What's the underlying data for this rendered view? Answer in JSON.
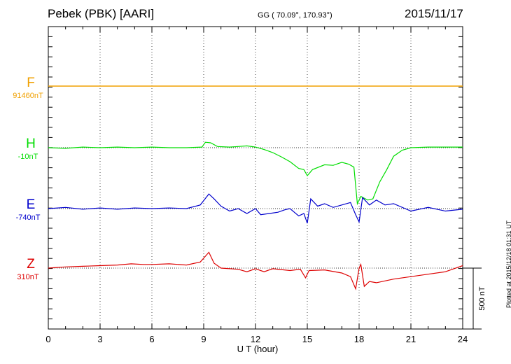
{
  "header": {
    "station": "Pebek (PBK)  [AARI]",
    "coords": "GG ( 70.09°, 170.93°)",
    "date": "2015/11/17"
  },
  "footer_note": "Plotted at 2015/12/18 01:31  UT",
  "chart_data": {
    "type": "line",
    "xlabel": "U T (hour)",
    "xlim": [
      0,
      24
    ],
    "xticks": [
      "0",
      "3",
      "6",
      "9",
      "12",
      "15",
      "18",
      "21",
      "24"
    ],
    "grid": true,
    "scale_bar": {
      "label": "500 nT",
      "value_nT": 500
    },
    "series": [
      {
        "name": "F",
        "baseline": "91460nT",
        "color": "#f0a000",
        "points": [
          [
            0,
            0
          ],
          [
            6,
            0
          ],
          [
            12,
            0
          ],
          [
            18,
            0
          ],
          [
            24,
            0
          ]
        ]
      },
      {
        "name": "H",
        "baseline": "-10nT",
        "color": "#00dd00",
        "points": [
          [
            0,
            0
          ],
          [
            1,
            -5
          ],
          [
            2,
            5
          ],
          [
            3,
            0
          ],
          [
            4,
            5
          ],
          [
            5,
            0
          ],
          [
            6,
            5
          ],
          [
            7,
            0
          ],
          [
            8,
            0
          ],
          [
            8.9,
            5
          ],
          [
            9.1,
            45
          ],
          [
            9.4,
            40
          ],
          [
            9.8,
            10
          ],
          [
            10.5,
            5
          ],
          [
            11,
            10
          ],
          [
            11.5,
            15
          ],
          [
            12,
            5
          ],
          [
            12.5,
            -15
          ],
          [
            13,
            -40
          ],
          [
            13.5,
            -75
          ],
          [
            14,
            -115
          ],
          [
            14.5,
            -170
          ],
          [
            14.8,
            -180
          ],
          [
            15,
            -230
          ],
          [
            15.3,
            -180
          ],
          [
            16,
            -140
          ],
          [
            16.5,
            -145
          ],
          [
            17,
            -120
          ],
          [
            17.4,
            -135
          ],
          [
            17.7,
            -160
          ],
          [
            17.9,
            -460
          ],
          [
            18.1,
            -400
          ],
          [
            18.5,
            -430
          ],
          [
            18.8,
            -420
          ],
          [
            19.2,
            -280
          ],
          [
            19.6,
            -180
          ],
          [
            20,
            -70
          ],
          [
            20.5,
            -20
          ],
          [
            21,
            0
          ],
          [
            22,
            5
          ],
          [
            23,
            5
          ],
          [
            24,
            5
          ]
        ]
      },
      {
        "name": "E",
        "baseline": "-740nT",
        "color": "#0000cc",
        "points": [
          [
            0,
            0
          ],
          [
            1,
            10
          ],
          [
            2,
            -5
          ],
          [
            3,
            5
          ],
          [
            4,
            -5
          ],
          [
            5,
            5
          ],
          [
            6,
            0
          ],
          [
            7,
            5
          ],
          [
            8,
            0
          ],
          [
            8.8,
            30
          ],
          [
            9.3,
            120
          ],
          [
            9.6,
            80
          ],
          [
            10,
            20
          ],
          [
            10.5,
            -20
          ],
          [
            11,
            0
          ],
          [
            11.5,
            -40
          ],
          [
            12,
            0
          ],
          [
            12.3,
            -50
          ],
          [
            12.8,
            -40
          ],
          [
            13.3,
            -30
          ],
          [
            13.7,
            -10
          ],
          [
            14,
            0
          ],
          [
            14.5,
            -60
          ],
          [
            14.8,
            -40
          ],
          [
            15,
            -120
          ],
          [
            15.2,
            80
          ],
          [
            15.6,
            20
          ],
          [
            16,
            40
          ],
          [
            16.5,
            10
          ],
          [
            17,
            30
          ],
          [
            17.5,
            50
          ],
          [
            17.8,
            -50
          ],
          [
            18,
            -110
          ],
          [
            18.2,
            90
          ],
          [
            18.6,
            30
          ],
          [
            19,
            70
          ],
          [
            19.5,
            30
          ],
          [
            20,
            40
          ],
          [
            21,
            -20
          ],
          [
            22,
            10
          ],
          [
            23,
            -20
          ],
          [
            24,
            -5
          ]
        ]
      },
      {
        "name": "Z",
        "baseline": "310nT",
        "color": "#dd0000",
        "points": [
          [
            0,
            0
          ],
          [
            1,
            10
          ],
          [
            2,
            15
          ],
          [
            3,
            20
          ],
          [
            4,
            25
          ],
          [
            4.8,
            35
          ],
          [
            5.5,
            30
          ],
          [
            6,
            30
          ],
          [
            7,
            35
          ],
          [
            8,
            25
          ],
          [
            8.8,
            50
          ],
          [
            9.3,
            130
          ],
          [
            9.6,
            40
          ],
          [
            10,
            0
          ],
          [
            11,
            -10
          ],
          [
            11.5,
            -30
          ],
          [
            12,
            -5
          ],
          [
            12.5,
            -30
          ],
          [
            13,
            -5
          ],
          [
            14,
            -20
          ],
          [
            14.6,
            -10
          ],
          [
            14.9,
            -80
          ],
          [
            15.1,
            -20
          ],
          [
            16,
            -15
          ],
          [
            17,
            -40
          ],
          [
            17.5,
            -70
          ],
          [
            17.8,
            -170
          ],
          [
            18,
            0
          ],
          [
            18.1,
            30
          ],
          [
            18.3,
            -150
          ],
          [
            18.6,
            -110
          ],
          [
            19,
            -120
          ],
          [
            20,
            -90
          ],
          [
            21,
            -70
          ],
          [
            22,
            -50
          ],
          [
            23,
            -30
          ],
          [
            24,
            20
          ]
        ]
      }
    ]
  }
}
